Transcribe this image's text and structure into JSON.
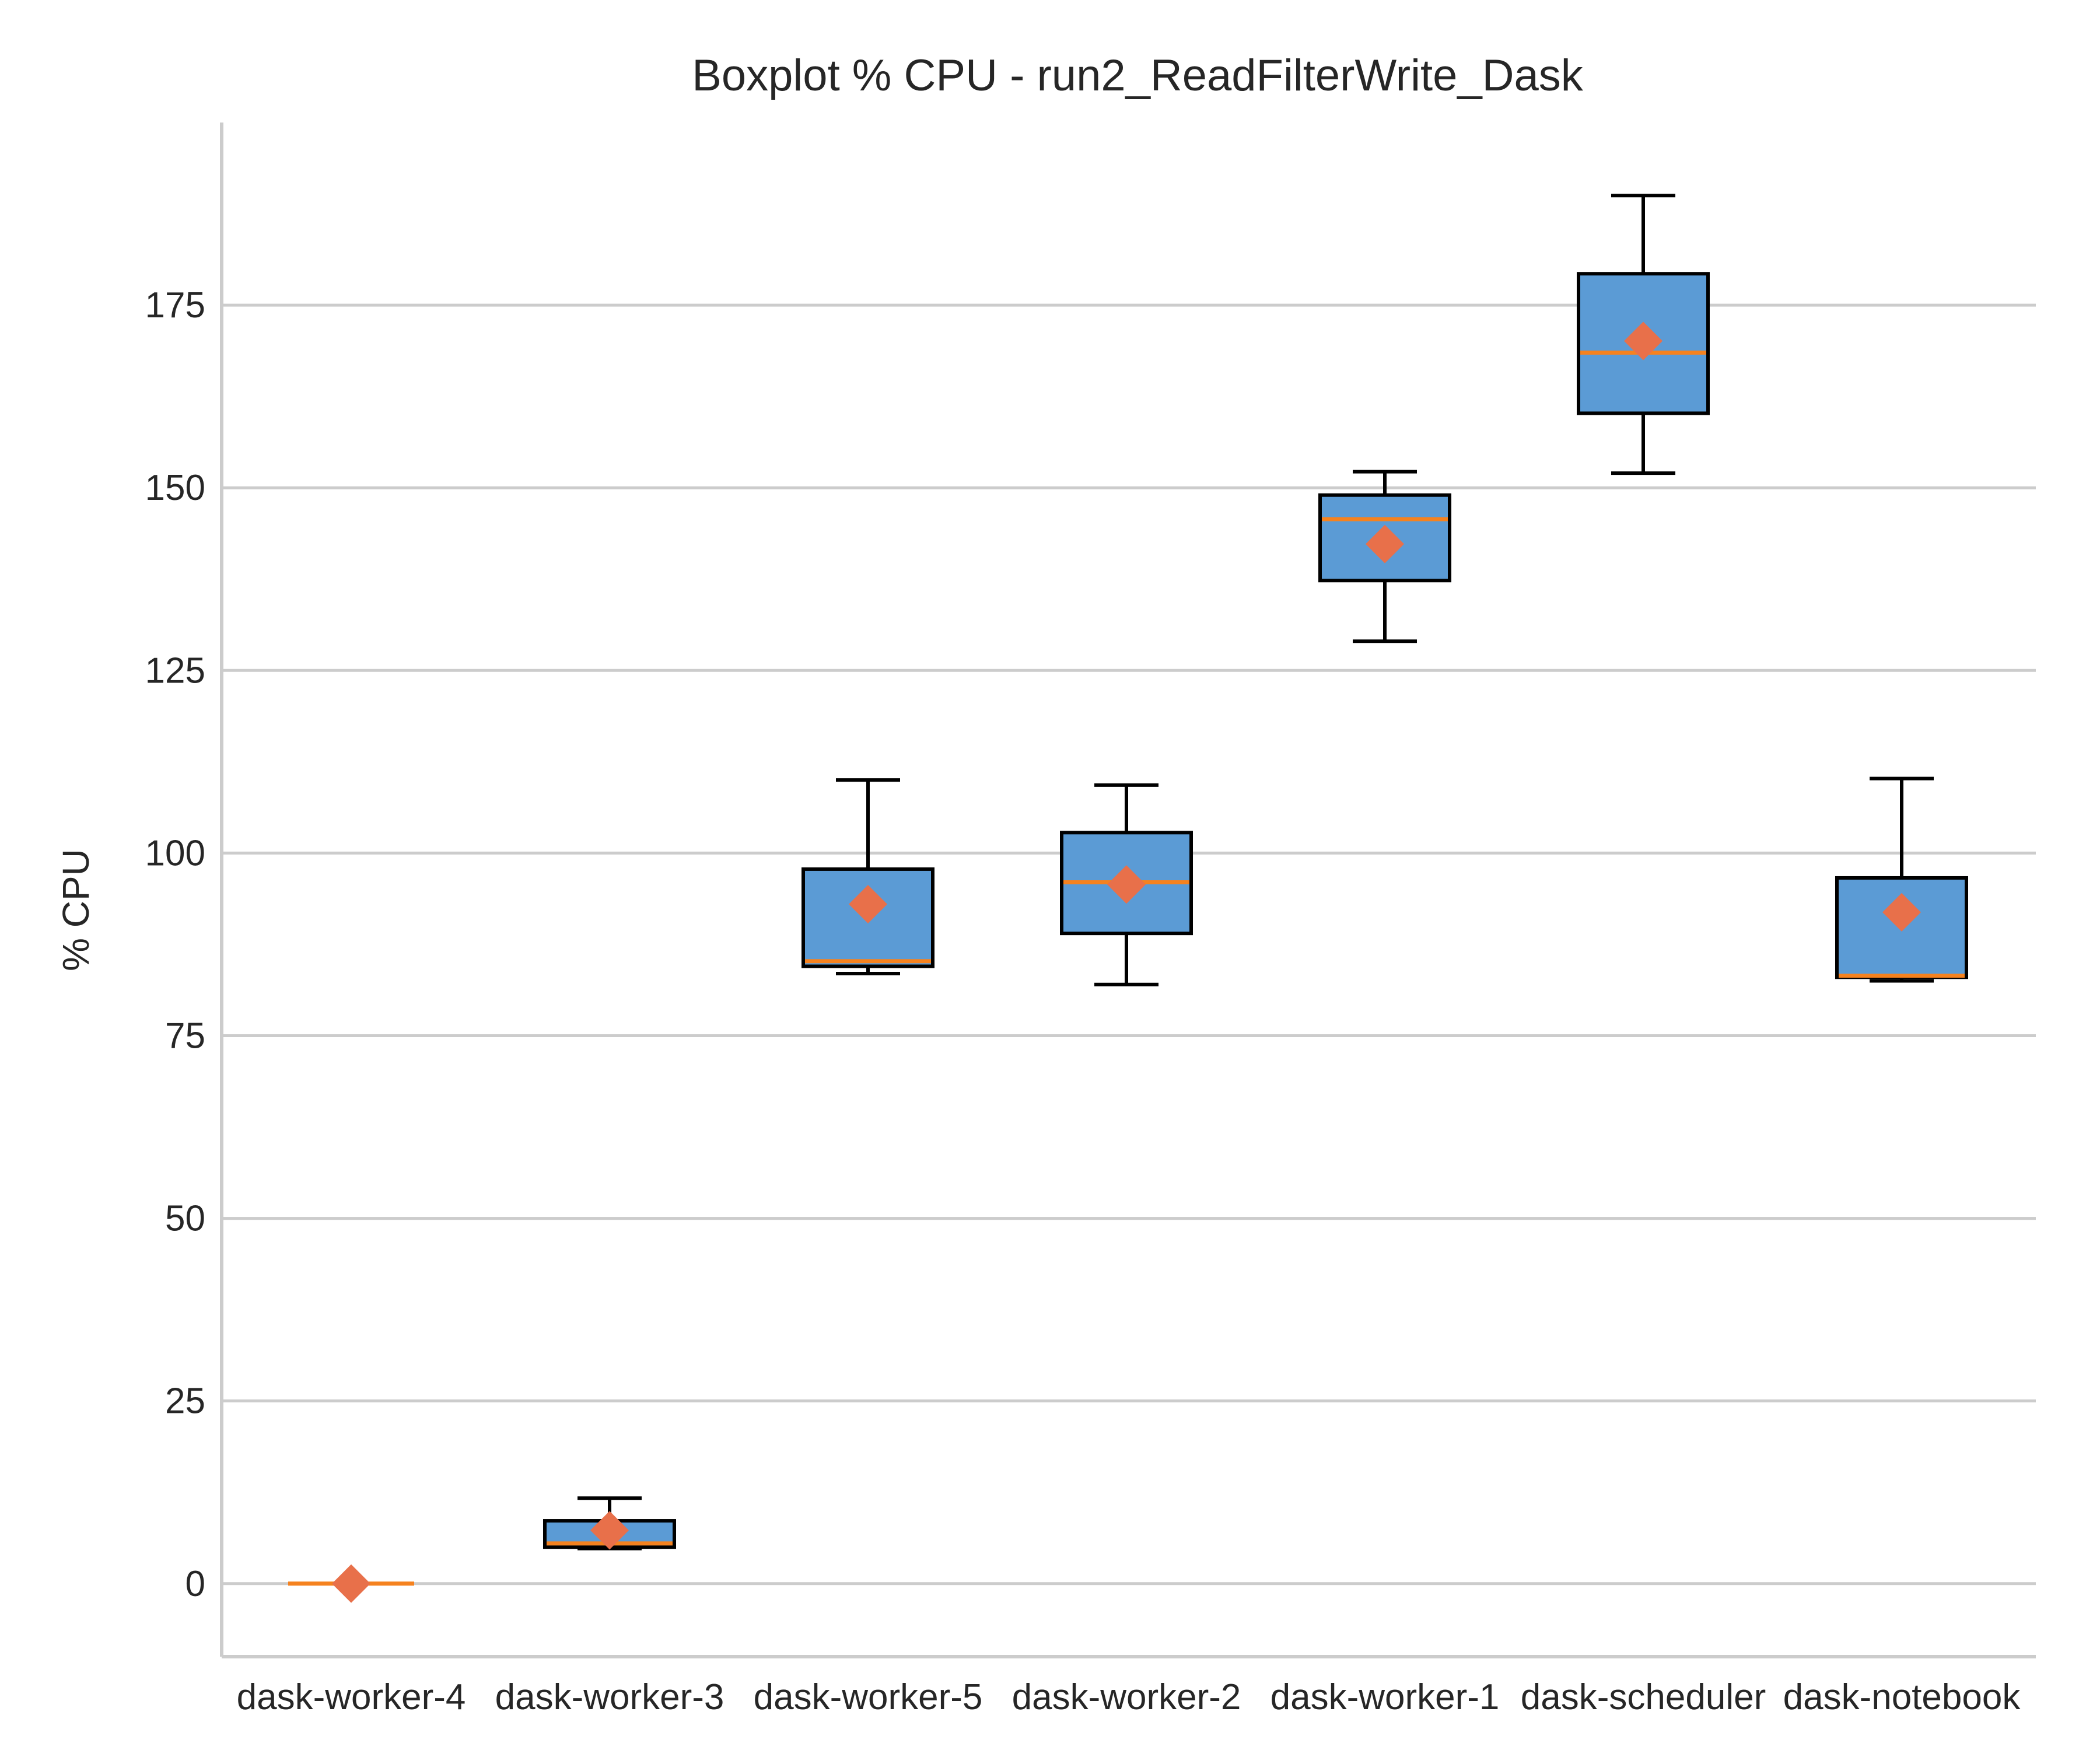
{
  "chart_data": {
    "type": "boxplot",
    "title": "Boxplot % CPU - run2_ReadFilterWrite_Dask",
    "ylabel": "% CPU",
    "xlabel": "",
    "ylim": [
      -10,
      200
    ],
    "yticks": [
      0,
      25,
      50,
      75,
      100,
      125,
      150,
      175
    ],
    "grid": "horizontal",
    "categories": [
      "dask-worker-4",
      "dask-worker-3",
      "dask-worker-5",
      "dask-worker-2",
      "dask-worker-1",
      "dask-scheduler",
      "dask-notebook"
    ],
    "boxes": [
      {
        "whisker_low": 0,
        "q1": 0,
        "median": 0,
        "q3": 0,
        "whisker_high": 0,
        "mean": 0
      },
      {
        "whisker_low": 4.8,
        "q1": 5.0,
        "median": 5.5,
        "q3": 8.6,
        "whisker_high": 11.7,
        "mean": 7.3
      },
      {
        "whisker_low": 83.5,
        "q1": 84.5,
        "median": 85.2,
        "q3": 97.8,
        "whisker_high": 110,
        "mean": 93.0
      },
      {
        "whisker_low": 82,
        "q1": 89,
        "median": 96,
        "q3": 102.8,
        "whisker_high": 109.3,
        "mean": 95.7
      },
      {
        "whisker_low": 129,
        "q1": 137.3,
        "median": 145.7,
        "q3": 149,
        "whisker_high": 152.2,
        "mean": 142.3
      },
      {
        "whisker_low": 152,
        "q1": 160.2,
        "median": 168.5,
        "q3": 179.3,
        "whisker_high": 190,
        "mean": 170.1
      },
      {
        "whisker_low": 82.5,
        "q1": 83,
        "median": 83.2,
        "q3": 96.6,
        "whisker_high": 110.2,
        "mean": 91.9
      }
    ],
    "colors": {
      "box_fill": "#5b9bd5",
      "box_edge": "#000000",
      "median": "#f5821f",
      "mean_marker": "#e8704a",
      "grid": "#cccccc",
      "axis": "#cccccc"
    }
  }
}
